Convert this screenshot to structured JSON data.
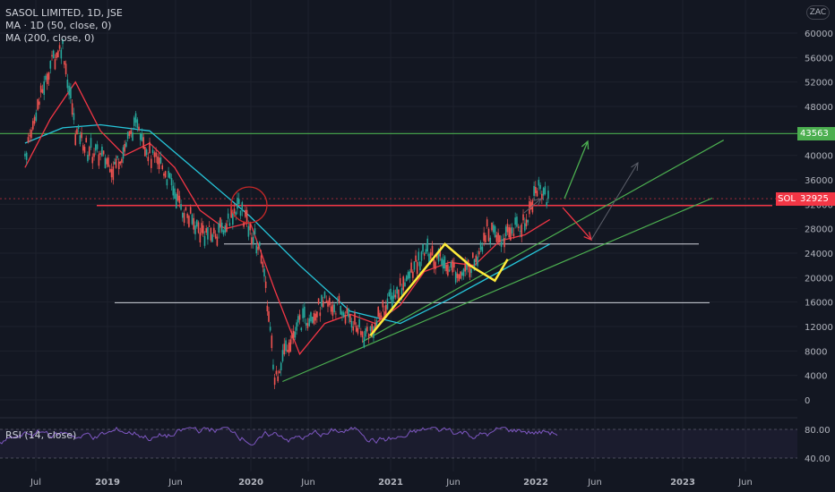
{
  "legend": {
    "title": "SASOL LIMITED, 1D, JSE",
    "ma1": "MA · 1D (50, close, 0)",
    "ma2": "MA (200, close, 0)"
  },
  "currency": "ZAC",
  "symbol": "SOL",
  "rsi_label": "RSI (14, close)",
  "colors": {
    "background": "#131722",
    "green_line": "#4caf50",
    "red_line": "#f23645",
    "white_line": "#d1d4dc",
    "yellow_pattern": "#ffeb3b",
    "ma_red": "#f23645",
    "ma_teal": "#26c6da",
    "rsi": "#7e57c2"
  },
  "chart_data": {
    "type": "line",
    "price_axis": [
      "60000",
      "56000",
      "52000",
      "48000",
      "44000",
      "40000",
      "36000",
      "32000",
      "28000",
      "24000",
      "20000",
      "16000",
      "12000",
      "8000",
      "4000",
      "0"
    ],
    "time_axis": [
      "Jul",
      "2019",
      "Jun",
      "2020",
      "Jun",
      "2021",
      "Jun",
      "2022",
      "Jun",
      "2023",
      "Jun"
    ],
    "price_tags": [
      {
        "value": "43563",
        "color": "#4caf50"
      },
      {
        "value": "32925",
        "color": "#f23645"
      }
    ],
    "rsi_axis": [
      "80.00",
      "40.00"
    ],
    "horizontal_levels": [
      43563,
      31800,
      25500,
      15900
    ],
    "price_series": [
      [
        "2018-07-01",
        40000
      ],
      [
        "2018-08-01",
        48000
      ],
      [
        "2018-09-01",
        55000
      ],
      [
        "2018-10-01",
        58000
      ],
      [
        "2018-11-01",
        44000
      ],
      [
        "2018-12-01",
        41000
      ],
      [
        "2019-01-01",
        40000
      ],
      [
        "2019-02-01",
        38000
      ],
      [
        "2019-03-01",
        41000
      ],
      [
        "2019-04-01",
        46000
      ],
      [
        "2019-05-01",
        40000
      ],
      [
        "2019-06-01",
        38000
      ],
      [
        "2019-07-01",
        34000
      ],
      [
        "2019-08-01",
        30000
      ],
      [
        "2019-09-01",
        27500
      ],
      [
        "2019-10-01",
        27000
      ],
      [
        "2019-11-01",
        28500
      ],
      [
        "2019-12-01",
        32000
      ],
      [
        "2020-01-01",
        28000
      ],
      [
        "2020-02-01",
        23000
      ],
      [
        "2020-03-01",
        3500
      ],
      [
        "2020-04-01",
        9000
      ],
      [
        "2020-05-01",
        12500
      ],
      [
        "2020-06-01",
        14000
      ],
      [
        "2020-07-01",
        15500
      ],
      [
        "2020-08-01",
        15000
      ],
      [
        "2020-09-01",
        13500
      ],
      [
        "2020-10-01",
        10500
      ],
      [
        "2020-11-01",
        12000
      ],
      [
        "2020-12-01",
        16000
      ],
      [
        "2021-01-01",
        18500
      ],
      [
        "2021-02-01",
        21000
      ],
      [
        "2021-03-01",
        24500
      ],
      [
        "2021-04-01",
        23000
      ],
      [
        "2021-05-01",
        22000
      ],
      [
        "2021-06-01",
        20500
      ],
      [
        "2021-07-01",
        23000
      ],
      [
        "2021-08-01",
        28000
      ],
      [
        "2021-09-01",
        26000
      ],
      [
        "2021-10-01",
        27500
      ],
      [
        "2021-11-01",
        29000
      ],
      [
        "2021-12-01",
        35000
      ],
      [
        "2022-01-01",
        33000
      ]
    ],
    "ma50_series": [
      [
        "2018-07-01",
        38000
      ],
      [
        "2018-09-01",
        46000
      ],
      [
        "2018-11-01",
        52000
      ],
      [
        "2019-01-01",
        44000
      ],
      [
        "2019-03-01",
        40000
      ],
      [
        "2019-05-01",
        42000
      ],
      [
        "2019-07-01",
        38000
      ],
      [
        "2019-09-01",
        31000
      ],
      [
        "2019-11-01",
        28000
      ],
      [
        "2020-01-01",
        29000
      ],
      [
        "2020-03-01",
        18000
      ],
      [
        "2020-05-01",
        7500
      ],
      [
        "2020-07-01",
        12500
      ],
      [
        "2020-09-01",
        14000
      ],
      [
        "2020-11-01",
        12500
      ],
      [
        "2021-01-01",
        15500
      ],
      [
        "2021-03-01",
        21000
      ],
      [
        "2021-05-01",
        22500
      ],
      [
        "2021-07-01",
        22000
      ],
      [
        "2021-09-01",
        26000
      ],
      [
        "2021-11-01",
        27000
      ],
      [
        "2022-01-01",
        29500
      ]
    ],
    "ma200_series": [
      [
        "2018-07-01",
        42000
      ],
      [
        "2018-10-01",
        44500
      ],
      [
        "2019-01-01",
        45000
      ],
      [
        "2019-05-01",
        44000
      ],
      [
        "2019-09-01",
        37000
      ],
      [
        "2020-01-01",
        30000
      ],
      [
        "2020-05-01",
        22000
      ],
      [
        "2020-09-01",
        14500
      ],
      [
        "2021-01-01",
        12500
      ],
      [
        "2021-05-01",
        16500
      ],
      [
        "2021-09-01",
        21000
      ],
      [
        "2022-01-01",
        25500
      ]
    ],
    "channel_lines": [
      [
        [
          "2020-03-20",
          3000
        ],
        [
          "2023-02-01",
          33000
        ]
      ],
      [
        [
          "2020-10-01",
          9500
        ],
        [
          "2023-03-01",
          42500
        ]
      ]
    ],
    "yellow_pattern": [
      [
        "2020-10-20",
        10500
      ],
      [
        "2021-04-20",
        25500
      ],
      [
        "2021-06-20",
        22000
      ],
      [
        "2021-08-20",
        19500
      ],
      [
        "2021-09-20",
        23000
      ]
    ]
  }
}
